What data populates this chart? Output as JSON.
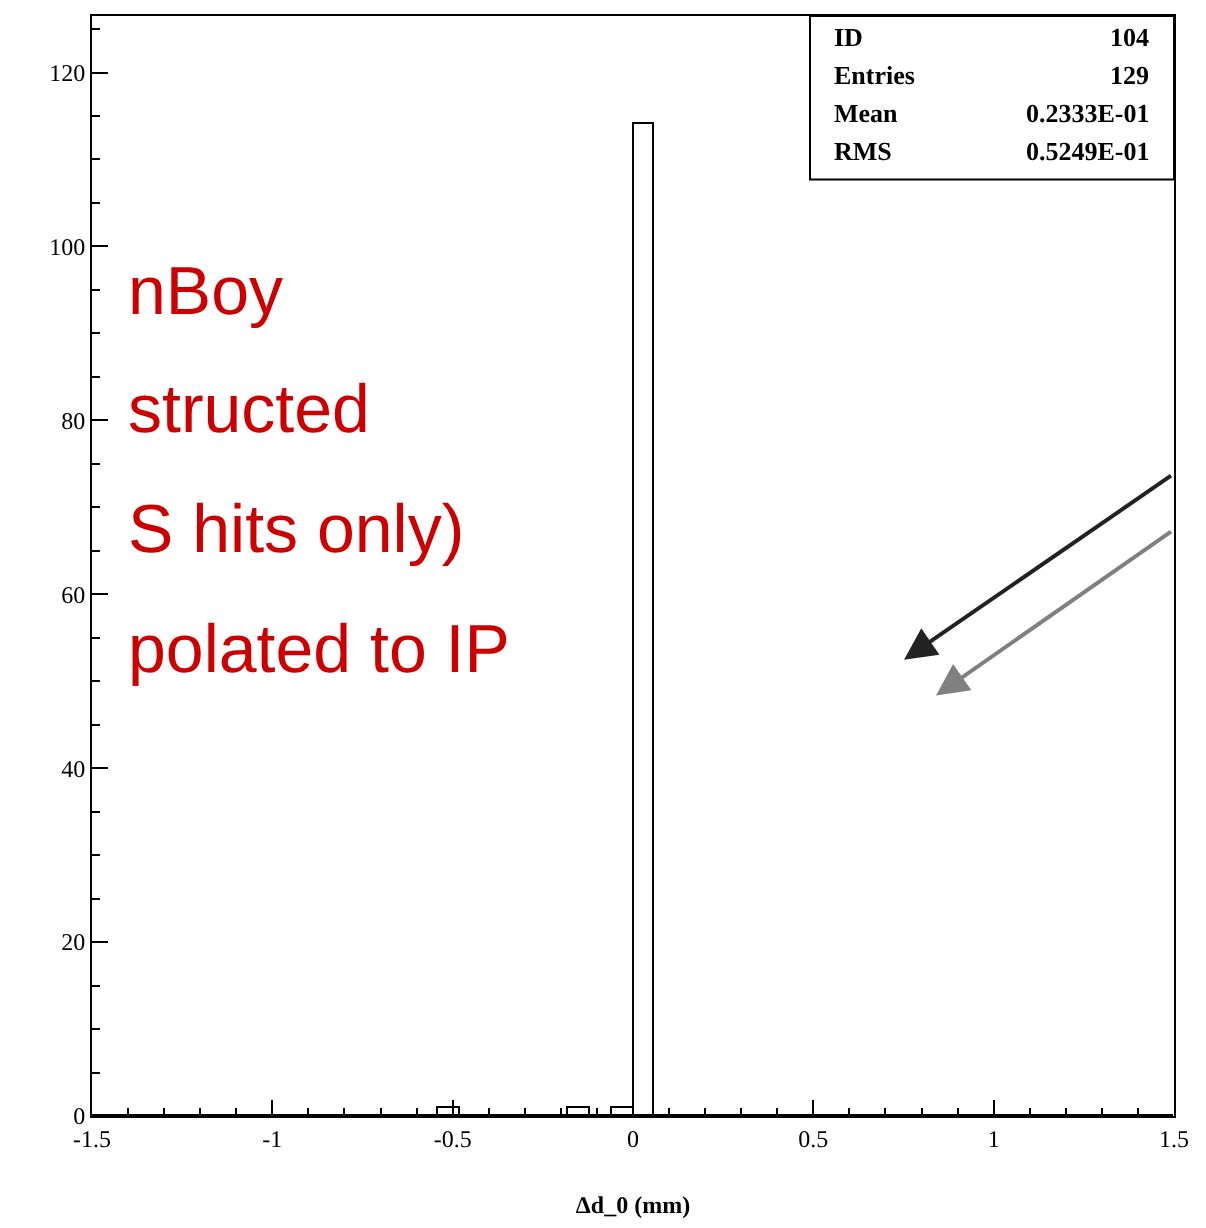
{
  "chart_data": {
    "type": "histogram",
    "xlabel": "Δd_0 (mm)",
    "bins": [
      -1.5,
      -1.44,
      -1.38,
      -1.32,
      -1.26,
      -1.2,
      -1.14,
      -1.08,
      -1.02,
      -0.96,
      -0.9,
      -0.84,
      -0.78,
      -0.72,
      -0.66,
      -0.6,
      -0.54,
      -0.48,
      -0.42,
      -0.36,
      -0.3,
      -0.24,
      -0.18,
      -0.12,
      -0.06,
      0,
      0.06,
      0.12,
      0.18,
      0.24,
      0.3,
      0.36,
      0.42,
      0.48,
      0.54,
      0.6,
      0.66,
      0.72,
      0.78,
      0.84,
      0.9,
      0.96,
      1.02,
      1.08,
      1.14,
      1.2,
      1.26,
      1.32,
      1.38,
      1.44,
      1.5
    ],
    "values": [
      0,
      0,
      0,
      0,
      0,
      0,
      0,
      0,
      0,
      0,
      0,
      0,
      0,
      0,
      0,
      0,
      1,
      0,
      0,
      0,
      0,
      0,
      1,
      0,
      1,
      114,
      0,
      0,
      0,
      0,
      0,
      0,
      0,
      0,
      0,
      0,
      0,
      0,
      0,
      0,
      0,
      0,
      0,
      0,
      0,
      0,
      0,
      0,
      0,
      0
    ],
    "color": "#000000",
    "xlim": [
      -1.5,
      1.5
    ],
    "xticks": [
      -1.5,
      -1,
      -0.5,
      0,
      0.5,
      1,
      1.5
    ],
    "ylim": [
      0,
      126.5
    ],
    "yticks": [
      0,
      20,
      40,
      60,
      80,
      100,
      120
    ],
    "annotations": [
      "ID",
      "104",
      "Entries",
      "129",
      "Mean",
      "0.2333E-01",
      "RMS",
      "0.5249E-01",
      "nBoy",
      "structed",
      "S hits only)",
      "polated to IP"
    ]
  }
}
